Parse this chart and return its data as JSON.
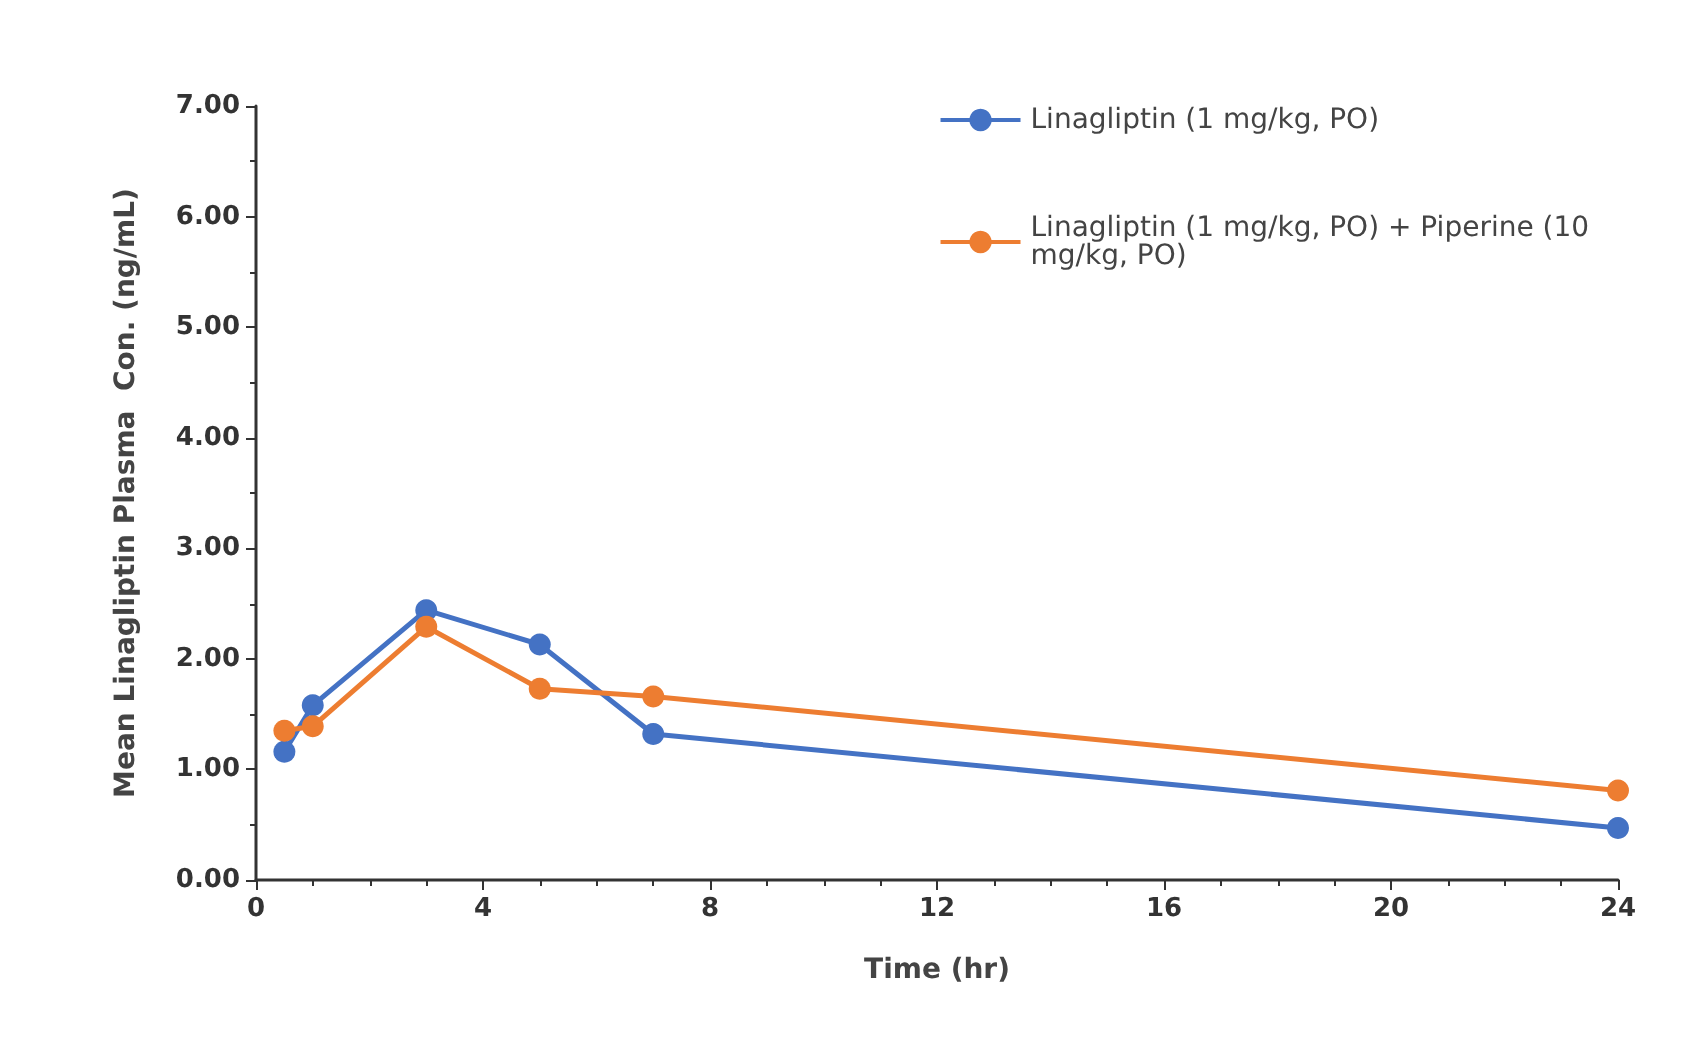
{
  "chart_data": {
    "type": "line",
    "xlabel": "Time (hr)",
    "ylabel": "Mean Linagliptin Plasma  Con. (ng/mL)",
    "x": [
      0.5,
      1,
      3,
      5,
      7,
      24
    ],
    "series": [
      {
        "name": "Linagliptin (1 mg/kg, PO)",
        "color": "#4472c4",
        "values": [
          1.16,
          1.58,
          2.44,
          2.13,
          1.32,
          0.47
        ]
      },
      {
        "name": "Linagliptin (1 mg/kg, PO) + Piperine (10 mg/kg, PO)",
        "color": "#ed7d31",
        "values": [
          1.35,
          1.39,
          2.29,
          1.73,
          1.66,
          0.81
        ]
      }
    ],
    "xlim": [
      0,
      24
    ],
    "xticks": [
      0,
      4,
      8,
      12,
      16,
      20,
      24
    ],
    "ylim": [
      0,
      7
    ],
    "yticks": [
      {
        "value": 0,
        "label": "0.00"
      },
      {
        "value": 1,
        "label": "1.00"
      },
      {
        "value": 2,
        "label": "2.00"
      },
      {
        "value": 3,
        "label": "3.00"
      },
      {
        "value": 4,
        "label": "4.00"
      },
      {
        "value": 5,
        "label": "5.00"
      },
      {
        "value": 6,
        "label": "6.00"
      },
      {
        "value": 7,
        "label": "7.00"
      }
    ],
    "grid": false,
    "legend": "top right",
    "marker": "circle",
    "line_style": "solid"
  }
}
